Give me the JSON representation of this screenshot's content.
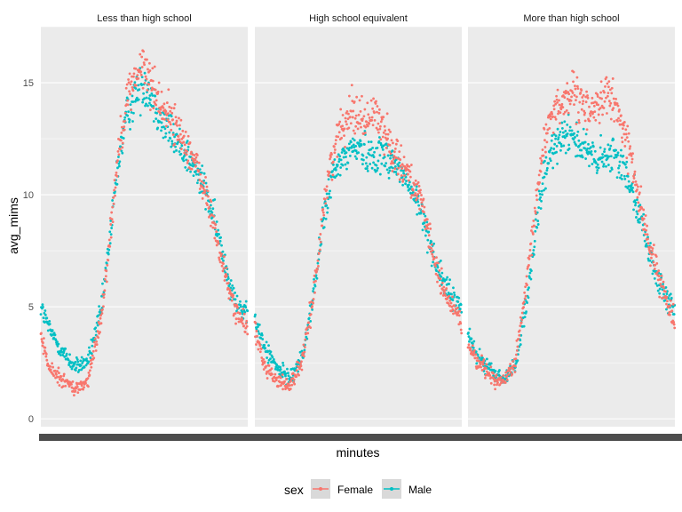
{
  "chart_data": {
    "type": "scatter",
    "title": "",
    "facet_var": "education",
    "facets": [
      "Less than high school",
      "High school equivalent",
      "More than high school"
    ],
    "xlabel": "minutes",
    "ylabel": "avg_mims",
    "x_ticks": "overplotted (unreadable)",
    "xlim": [
      1,
      1440
    ],
    "ylim": [
      0,
      17.5
    ],
    "y_ticks": [
      "0",
      "5",
      "10",
      "15"
    ],
    "y_tick_values": [
      0,
      5,
      10,
      15
    ],
    "legend": {
      "title": "sex",
      "position": "bottom",
      "items": [
        "Female",
        "Male"
      ]
    },
    "colors": {
      "Female": "#F8766D",
      "Male": "#00BFC4",
      "panel": "#EBEBEB",
      "grid": "#FFFFFF",
      "xtick_band": "#4D4D4D"
    },
    "grid": true,
    "series_profile_note": "dense minute-level points; values below are approximate trend anchors at [minute, avg_mims]",
    "series": [
      {
        "facet": "Less than high school",
        "name": "Female",
        "values": [
          [
            1,
            3.8
          ],
          [
            60,
            2.2
          ],
          [
            150,
            1.8
          ],
          [
            240,
            1.3
          ],
          [
            330,
            1.7
          ],
          [
            420,
            4.5
          ],
          [
            480,
            8.0
          ],
          [
            540,
            12.0
          ],
          [
            600,
            14.3
          ],
          [
            660,
            15.3
          ],
          [
            720,
            15.7
          ],
          [
            780,
            14.8
          ],
          [
            840,
            14.0
          ],
          [
            900,
            13.5
          ],
          [
            960,
            12.8
          ],
          [
            1020,
            12.2
          ],
          [
            1080,
            11.3
          ],
          [
            1140,
            10.2
          ],
          [
            1200,
            8.8
          ],
          [
            1260,
            7.0
          ],
          [
            1320,
            5.5
          ],
          [
            1380,
            4.5
          ],
          [
            1440,
            4.0
          ]
        ]
      },
      {
        "facet": "Less than high school",
        "name": "Male",
        "values": [
          [
            1,
            5.0
          ],
          [
            60,
            4.0
          ],
          [
            150,
            3.0
          ],
          [
            240,
            2.3
          ],
          [
            330,
            2.6
          ],
          [
            420,
            4.8
          ],
          [
            480,
            8.0
          ],
          [
            540,
            11.5
          ],
          [
            600,
            13.5
          ],
          [
            660,
            14.5
          ],
          [
            720,
            15.0
          ],
          [
            780,
            14.3
          ],
          [
            840,
            13.3
          ],
          [
            900,
            12.8
          ],
          [
            960,
            12.2
          ],
          [
            1020,
            11.8
          ],
          [
            1080,
            11.0
          ],
          [
            1140,
            10.3
          ],
          [
            1200,
            9.0
          ],
          [
            1260,
            7.5
          ],
          [
            1320,
            6.0
          ],
          [
            1380,
            5.0
          ],
          [
            1440,
            4.5
          ]
        ]
      },
      {
        "facet": "High school equivalent",
        "name": "Female",
        "values": [
          [
            1,
            4.0
          ],
          [
            60,
            2.5
          ],
          [
            150,
            1.7
          ],
          [
            240,
            1.5
          ],
          [
            330,
            2.5
          ],
          [
            420,
            6.0
          ],
          [
            480,
            9.5
          ],
          [
            540,
            11.8
          ],
          [
            600,
            13.0
          ],
          [
            660,
            13.8
          ],
          [
            720,
            13.6
          ],
          [
            780,
            13.2
          ],
          [
            840,
            13.8
          ],
          [
            900,
            12.8
          ],
          [
            960,
            12.0
          ],
          [
            1020,
            11.5
          ],
          [
            1080,
            10.8
          ],
          [
            1140,
            10.0
          ],
          [
            1200,
            8.5
          ],
          [
            1260,
            6.8
          ],
          [
            1320,
            5.5
          ],
          [
            1380,
            5.0
          ],
          [
            1440,
            4.5
          ]
        ]
      },
      {
        "facet": "High school equivalent",
        "name": "Male",
        "values": [
          [
            1,
            4.5
          ],
          [
            60,
            3.3
          ],
          [
            150,
            2.3
          ],
          [
            240,
            1.8
          ],
          [
            330,
            2.7
          ],
          [
            420,
            6.0
          ],
          [
            480,
            9.0
          ],
          [
            540,
            10.8
          ],
          [
            600,
            11.5
          ],
          [
            660,
            12.0
          ],
          [
            720,
            12.2
          ],
          [
            780,
            11.8
          ],
          [
            840,
            11.8
          ],
          [
            900,
            11.8
          ],
          [
            960,
            11.5
          ],
          [
            1020,
            11.0
          ],
          [
            1080,
            10.3
          ],
          [
            1140,
            9.5
          ],
          [
            1200,
            8.3
          ],
          [
            1260,
            7.0
          ],
          [
            1320,
            6.0
          ],
          [
            1380,
            5.3
          ],
          [
            1440,
            5.0
          ]
        ]
      },
      {
        "facet": "More than high school",
        "name": "Female",
        "values": [
          [
            1,
            3.3
          ],
          [
            60,
            2.7
          ],
          [
            150,
            2.0
          ],
          [
            240,
            1.6
          ],
          [
            330,
            2.5
          ],
          [
            420,
            6.5
          ],
          [
            480,
            10.0
          ],
          [
            540,
            12.8
          ],
          [
            600,
            13.8
          ],
          [
            660,
            14.2
          ],
          [
            720,
            14.5
          ],
          [
            780,
            14.0
          ],
          [
            840,
            13.8
          ],
          [
            900,
            14.0
          ],
          [
            960,
            14.5
          ],
          [
            1020,
            14.0
          ],
          [
            1080,
            13.0
          ],
          [
            1140,
            11.5
          ],
          [
            1200,
            9.5
          ],
          [
            1260,
            7.8
          ],
          [
            1320,
            6.5
          ],
          [
            1380,
            5.3
          ],
          [
            1440,
            4.5
          ]
        ]
      },
      {
        "facet": "More than high school",
        "name": "Male",
        "values": [
          [
            1,
            3.8
          ],
          [
            60,
            2.8
          ],
          [
            150,
            2.2
          ],
          [
            240,
            1.7
          ],
          [
            330,
            2.4
          ],
          [
            420,
            5.5
          ],
          [
            480,
            8.8
          ],
          [
            540,
            11.0
          ],
          [
            600,
            12.2
          ],
          [
            660,
            12.8
          ],
          [
            720,
            12.8
          ],
          [
            780,
            12.2
          ],
          [
            840,
            11.8
          ],
          [
            900,
            11.5
          ],
          [
            960,
            11.6
          ],
          [
            1020,
            11.8
          ],
          [
            1080,
            11.2
          ],
          [
            1140,
            10.5
          ],
          [
            1200,
            9.0
          ],
          [
            1260,
            7.5
          ],
          [
            1320,
            6.2
          ],
          [
            1380,
            5.3
          ],
          [
            1440,
            4.8
          ]
        ]
      }
    ]
  }
}
